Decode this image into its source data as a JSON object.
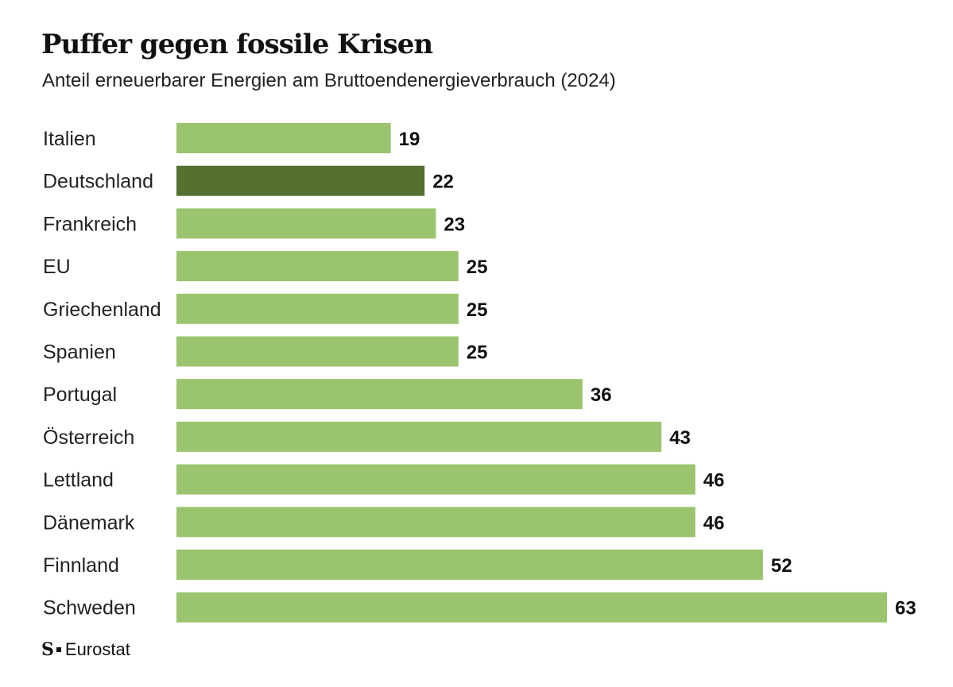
{
  "header": {
    "title": "Puffer gegen fossile Krisen",
    "subtitle": "Anteil erneuerbarer Energien am Bruttoendenergieverbrauch (2024)"
  },
  "source": {
    "logo": "S",
    "logo_icon": "publisher-logo-icon",
    "text": "Eurostat"
  },
  "colors": {
    "bar": "#9bc46e",
    "highlight": "#547131",
    "text": "#111111"
  },
  "chart_data": {
    "type": "bar",
    "orientation": "horizontal",
    "title": "Puffer gegen fossile Krisen",
    "subtitle": "Anteil erneuerbarer Energien am Bruttoendenergieverbrauch (2024)",
    "categories": [
      "Italien",
      "Deutschland",
      "Frankreich",
      "EU",
      "Griechenland",
      "Spanien",
      "Portugal",
      "Österreich",
      "Lettland",
      "Dänemark",
      "Finnland",
      "Schweden"
    ],
    "values": [
      19,
      22,
      23,
      25,
      25,
      25,
      36,
      43,
      46,
      46,
      52,
      63
    ],
    "value_labels": [
      "19",
      "22",
      "23",
      "25",
      "25",
      "25",
      "36",
      "43",
      "46",
      "46",
      "52",
      "63"
    ],
    "highlight": "Deutschland",
    "xlim": [
      0,
      63
    ],
    "grid": false,
    "legend": "none",
    "source": "Eurostat"
  }
}
